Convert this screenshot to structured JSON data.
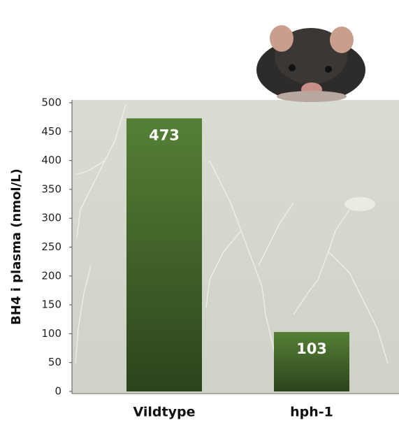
{
  "chart_data": {
    "type": "bar",
    "y_label": "BH4 i plasma (nmol/L)",
    "categories": [
      "Vildtype",
      "hph-1"
    ],
    "values": [
      473,
      103
    ],
    "color": "#3f5f28",
    "ylim": [
      0,
      500
    ],
    "yticks": [
      0,
      50,
      100,
      150,
      200,
      250,
      300,
      350,
      400,
      450,
      500
    ]
  }
}
